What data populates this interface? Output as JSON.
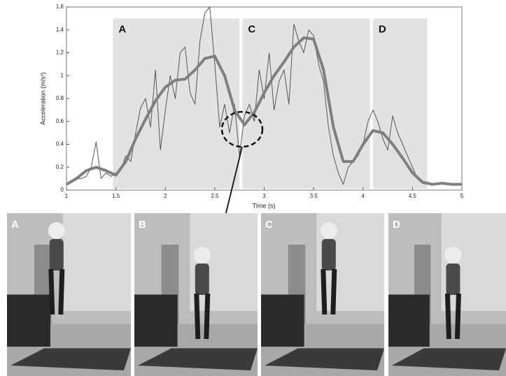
{
  "chart_data": {
    "type": "line",
    "x_label": "Time (s)",
    "y_label": "Acceleration (m/s²)",
    "xlim": [
      1,
      5
    ],
    "ylim": [
      0,
      1.6
    ],
    "xticks": [
      1,
      1.5,
      2,
      2.5,
      3,
      3.5,
      4,
      4.5,
      5
    ],
    "yticks": [
      0,
      0.2,
      0.4,
      0.6,
      0.8,
      1,
      1.2,
      1.4,
      1.6
    ],
    "regions": [
      {
        "label": "A",
        "start": 1.47,
        "end": 2.75,
        "top": 1.5
      },
      {
        "label": "C",
        "start": 2.78,
        "end": 4.07,
        "top": 1.5
      },
      {
        "label": "D",
        "start": 4.1,
        "end": 4.65,
        "top": 1.5
      }
    ],
    "series": [
      {
        "color": "#555555",
        "width": 1,
        "x": [
          1,
          1.05,
          1.1,
          1.15,
          1.2,
          1.25,
          1.3,
          1.35,
          1.4,
          1.45,
          1.5,
          1.55,
          1.6,
          1.65,
          1.7,
          1.75,
          1.8,
          1.85,
          1.9,
          1.95,
          2,
          2.05,
          2.1,
          2.15,
          2.2,
          2.25,
          2.3,
          2.35,
          2.4,
          2.45,
          2.5,
          2.55,
          2.6,
          2.65,
          2.7,
          2.75,
          2.8,
          2.85,
          2.9,
          2.95,
          3,
          3.05,
          3.1,
          3.15,
          3.2,
          3.25,
          3.3,
          3.35,
          3.4,
          3.45,
          3.5,
          3.55,
          3.6,
          3.65,
          3.7,
          3.75,
          3.8,
          3.85,
          3.9,
          3.95,
          4,
          4.05,
          4.1,
          4.15,
          4.2,
          4.25,
          4.3,
          4.35,
          4.4,
          4.45,
          4.5,
          4.55,
          4.6,
          4.65,
          4.7,
          4.75,
          4.8,
          4.85,
          4.9,
          4.95,
          5
        ],
        "values": [
          0.05,
          0.08,
          0.1,
          0.1,
          0.12,
          0.2,
          0.42,
          0.1,
          0.15,
          0.12,
          0.15,
          0.18,
          0.3,
          0.25,
          0.5,
          0.72,
          0.8,
          0.55,
          1.05,
          0.35,
          0.7,
          1.0,
          0.8,
          1.2,
          1.25,
          0.85,
          0.75,
          1.3,
          1.55,
          1.6,
          1.1,
          0.55,
          0.75,
          0.5,
          0.75,
          0.3,
          0.65,
          0.75,
          0.6,
          1.05,
          0.8,
          1.2,
          0.7,
          0.95,
          1.05,
          0.75,
          1.45,
          1.3,
          1.2,
          1.4,
          1.35,
          1.1,
          0.95,
          0.55,
          0.3,
          0.15,
          0.05,
          0.2,
          0.25,
          0.3,
          0.4,
          0.6,
          0.7,
          0.6,
          0.45,
          0.35,
          0.65,
          0.5,
          0.4,
          0.3,
          0.2,
          0.1,
          0.06,
          0.05,
          0.06,
          0.05,
          0.07,
          0.05,
          0.06,
          0.05,
          0.05
        ]
      },
      {
        "color": "#7f7f7f",
        "width": 4,
        "x": [
          1,
          1.1,
          1.2,
          1.3,
          1.4,
          1.5,
          1.6,
          1.7,
          1.8,
          1.9,
          2,
          2.1,
          2.2,
          2.3,
          2.4,
          2.5,
          2.6,
          2.7,
          2.8,
          2.9,
          3,
          3.1,
          3.2,
          3.3,
          3.4,
          3.5,
          3.6,
          3.7,
          3.8,
          3.9,
          4,
          4.1,
          4.2,
          4.3,
          4.4,
          4.5,
          4.6,
          4.7,
          4.8,
          4.9,
          5
        ],
        "values": [
          0.05,
          0.1,
          0.17,
          0.2,
          0.17,
          0.13,
          0.25,
          0.45,
          0.62,
          0.78,
          0.9,
          0.96,
          0.97,
          1.05,
          1.15,
          1.17,
          1.0,
          0.7,
          0.57,
          0.68,
          0.85,
          1.0,
          1.12,
          1.25,
          1.33,
          1.32,
          1.05,
          0.55,
          0.25,
          0.25,
          0.4,
          0.52,
          0.5,
          0.4,
          0.28,
          0.15,
          0.07,
          0.05,
          0.06,
          0.05,
          0.05
        ]
      }
    ],
    "grid": false
  },
  "photos": [
    {
      "label": "A"
    },
    {
      "label": "B"
    },
    {
      "label": "C"
    },
    {
      "label": "D"
    }
  ]
}
